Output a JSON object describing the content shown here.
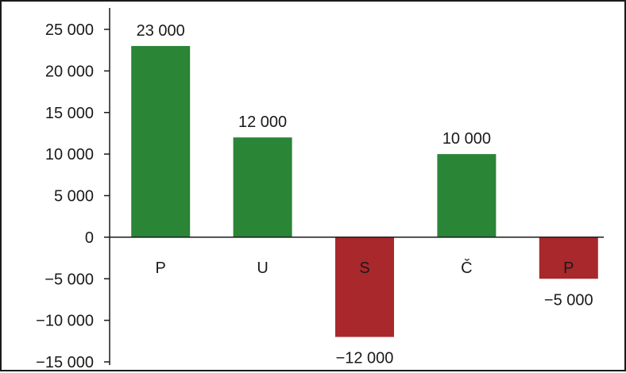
{
  "chart_data": {
    "type": "bar",
    "categories": [
      "P",
      "U",
      "S",
      "Č",
      "P"
    ],
    "values": [
      23000,
      12000,
      -12000,
      10000,
      -5000
    ],
    "data_labels": [
      "23 000",
      "12 000",
      "−12 000",
      "10 000",
      "−5 000"
    ],
    "yticks": [
      25000,
      20000,
      15000,
      10000,
      5000,
      0,
      -5000,
      -10000,
      -15000
    ],
    "ytick_labels": [
      "25 000",
      "20 000",
      "15 000",
      "10 000",
      "5 000",
      "0",
      "−5 000",
      "−10 000",
      "−15 000"
    ],
    "ylim": [
      -15000,
      25000
    ],
    "title": "",
    "xlabel": "",
    "ylabel": "",
    "grid": false,
    "legend": "none",
    "colors": {
      "positive": "#2a8537",
      "negative": "#a8282b",
      "axis": "#1a1a1a"
    }
  }
}
